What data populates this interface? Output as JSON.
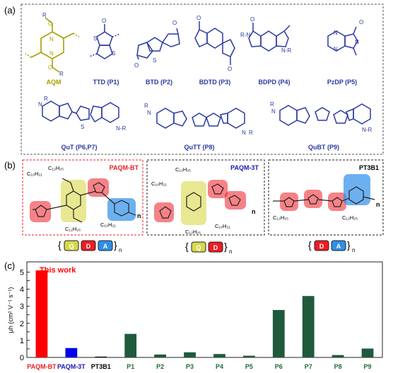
{
  "panels": {
    "a": {
      "label": "(a)",
      "monomers": [
        {
          "name": "AQM",
          "color": "#a8a000"
        },
        {
          "name": "TTD (P1)",
          "color": "#2a3aa0"
        },
        {
          "name": "BTD (P2)",
          "color": "#2a3aa0"
        },
        {
          "name": "BDTD (P3)",
          "color": "#2a3aa0"
        },
        {
          "name": "BDPD (P4)",
          "color": "#2a3aa0"
        },
        {
          "name": "PzDP (P5)",
          "color": "#2a3aa0"
        },
        {
          "name": "QuT (P6,P7)",
          "color": "#2a3aa0"
        },
        {
          "name": "QuTT (P8)",
          "color": "#2a3aa0"
        },
        {
          "name": "QuBT (P9)",
          "color": "#2a3aa0"
        }
      ]
    },
    "b": {
      "label": "(b)",
      "polymers": [
        {
          "name": "PAQM-BT",
          "color": "#ee1c24",
          "sequence": [
            "Q",
            "D",
            "A"
          ]
        },
        {
          "name": "PAQM-3T",
          "color": "#1a1ab4",
          "sequence": [
            "Q",
            "D"
          ]
        },
        {
          "name": "PT3B1",
          "color": "#000000",
          "sequence": [
            "D",
            "A"
          ]
        }
      ],
      "subscript_n": "n"
    },
    "c": {
      "label": "(c)",
      "annotation": "This work"
    }
  },
  "chart_data": {
    "type": "bar",
    "categories": [
      "PAQM-BT",
      "PAQM-3T",
      "PT3B1",
      "P1",
      "P2",
      "P3",
      "P4",
      "P5",
      "P6",
      "P7",
      "P8",
      "P9"
    ],
    "values": [
      5.1,
      0.55,
      0.05,
      1.38,
      0.17,
      0.3,
      0.2,
      0.1,
      2.78,
      3.6,
      0.14,
      0.52
    ],
    "colors": [
      "#ff0000",
      "#0000ee",
      "#111111",
      "#1f5a3c",
      "#1f5a3c",
      "#1f5a3c",
      "#1f5a3c",
      "#1f5a3c",
      "#1f5a3c",
      "#1f5a3c",
      "#1f5a3c",
      "#1f5a3c"
    ],
    "label_colors": [
      "#ee1c24",
      "#1a1ab4",
      "#000000",
      "#1f6b3c",
      "#1f6b3c",
      "#1f6b3c",
      "#1f6b3c",
      "#1f6b3c",
      "#1f6b3c",
      "#1f6b3c",
      "#1f6b3c",
      "#1f6b3c"
    ],
    "ylabel": "μh (cm² V⁻¹ s⁻¹)",
    "yticks": [
      "0",
      "0.5",
      "1",
      "1.5",
      "2",
      "2.5",
      "3",
      "3.5",
      "4",
      "4.5",
      "5"
    ],
    "ylim": [
      0,
      5.6
    ]
  }
}
